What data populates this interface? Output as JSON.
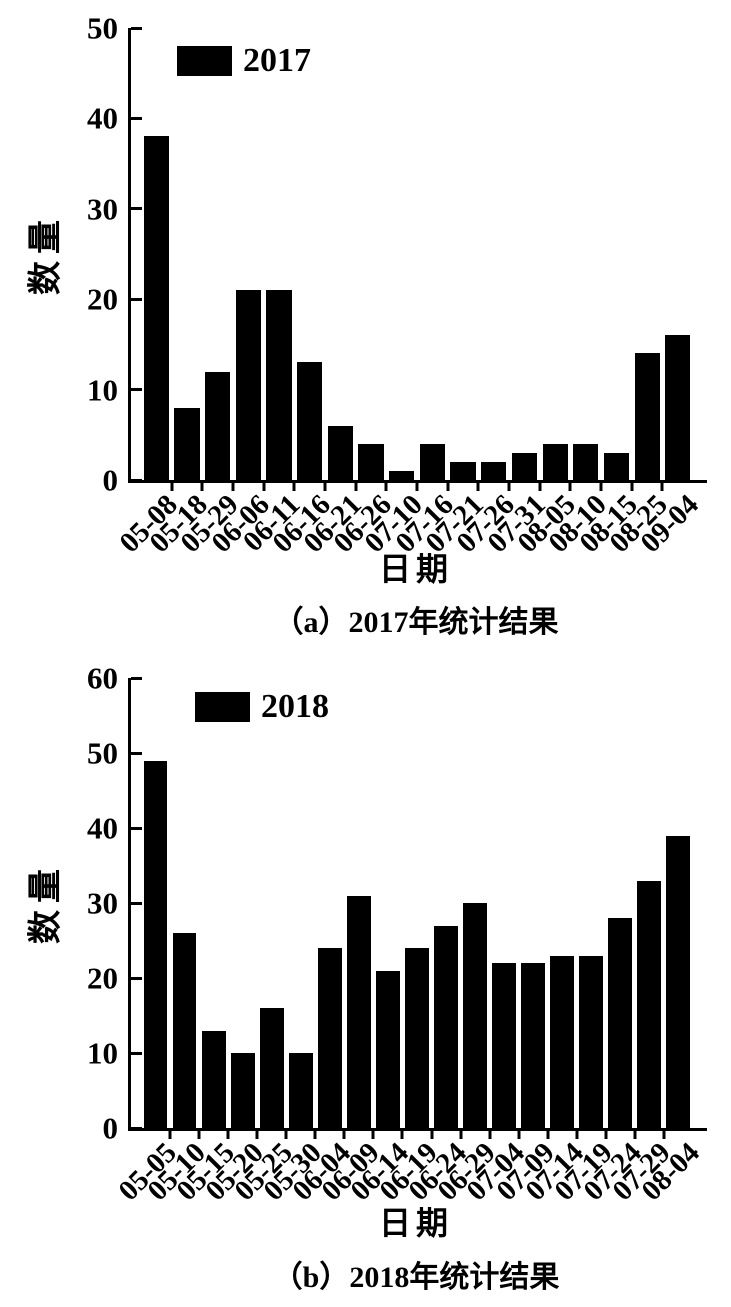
{
  "page": {
    "background": "#ffffff",
    "text_color": "#000000"
  },
  "chart_data": [
    {
      "type": "bar",
      "panel": "a",
      "legend_label": "2017",
      "caption": "（a）2017年统计结果",
      "xlabel": "日期",
      "ylabel": "数量",
      "ylim": [
        0,
        50
      ],
      "yticks": [
        0,
        10,
        20,
        30,
        40,
        50
      ],
      "grid": false,
      "legend_position": "top-left-inside",
      "bar_color": "#000000",
      "categories": [
        "05-08",
        "05-18",
        "05-29",
        "06-06",
        "06-11",
        "06-16",
        "06-21",
        "06-26",
        "07-10",
        "07-16",
        "07-21",
        "07-26",
        "07-31",
        "08-05",
        "08-10",
        "08-15",
        "08-25",
        "09-04"
      ],
      "values": [
        38,
        8,
        12,
        21,
        21,
        13,
        6,
        4,
        1,
        4,
        2,
        2,
        3,
        4,
        4,
        3,
        14,
        16
      ]
    },
    {
      "type": "bar",
      "panel": "b",
      "legend_label": "2018",
      "caption": "（b）2018年统计结果",
      "xlabel": "日期",
      "ylabel": "数量",
      "ylim": [
        0,
        60
      ],
      "yticks": [
        0,
        10,
        20,
        30,
        40,
        50,
        60
      ],
      "grid": false,
      "legend_position": "top-left-inside",
      "bar_color": "#000000",
      "categories": [
        "05-05",
        "05-10",
        "05-15",
        "05-20",
        "05-25",
        "05-30",
        "06-04",
        "06-09",
        "06-14",
        "06-19",
        "06-24",
        "06-29",
        "07-04",
        "07-09",
        "07-14",
        "07-19",
        "07-24",
        "07-29",
        "08-04"
      ],
      "values": [
        49,
        26,
        13,
        10,
        16,
        10,
        24,
        31,
        21,
        24,
        27,
        30,
        22,
        22,
        23,
        23,
        28,
        33,
        39
      ]
    }
  ]
}
